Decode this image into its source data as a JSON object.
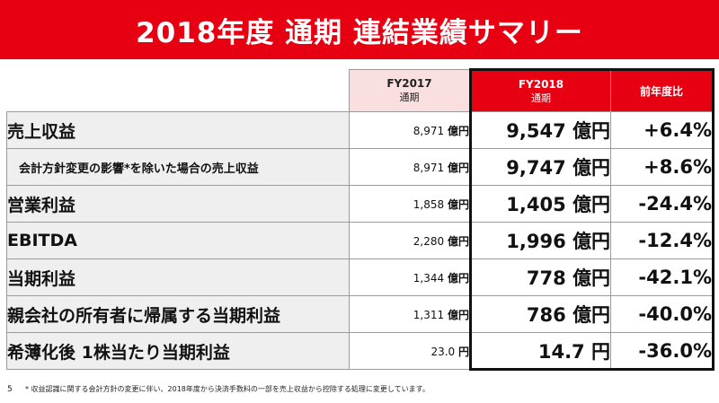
{
  "title": "2018年度 通期 連結業績サマリー",
  "header": {
    "fy2017": {
      "year": "FY2017",
      "period": "通期"
    },
    "fy2018": {
      "year": "FY2018",
      "period": "通期"
    },
    "yoy": "前年度比"
  },
  "rows": [
    {
      "label": "売上収益",
      "fy2017": "8,971",
      "fy2017_unit": "億円",
      "fy2018": "9,547",
      "fy2018_unit": "億円",
      "yoy": "+6.4%"
    },
    {
      "label": "会計方針変更の影響*を除いた場合の売上収益",
      "fy2017": "8,971",
      "fy2017_unit": "億円",
      "fy2018": "9,747",
      "fy2018_unit": "億円",
      "yoy": "+8.6%"
    },
    {
      "label": "営業利益",
      "fy2017": "1,858",
      "fy2017_unit": "億円",
      "fy2018": "1,405",
      "fy2018_unit": "億円",
      "yoy": "-24.4%"
    },
    {
      "label": "EBITDA",
      "fy2017": "2,280",
      "fy2017_unit": "億円",
      "fy2018": "1,996",
      "fy2018_unit": "億円",
      "yoy": "-12.4%"
    },
    {
      "label": "当期利益",
      "fy2017": "1,344",
      "fy2017_unit": "億円",
      "fy2018": "778",
      "fy2018_unit": "億円",
      "yoy": "-42.1%"
    },
    {
      "label": "親会社の所有者に帰属する当期利益",
      "fy2017": "1,311",
      "fy2017_unit": "億円",
      "fy2018": "786",
      "fy2018_unit": "億円",
      "yoy": "-40.0%"
    },
    {
      "label": "希薄化後 1株当たり当期利益",
      "fy2017": "23.0",
      "fy2017_unit": "円",
      "fy2018": "14.7",
      "fy2018_unit": "円",
      "yoy": "-36.0%"
    }
  ],
  "footnote": {
    "page_number": "5",
    "text": "* 収益認識に関する会計方針の変更に伴い、2018年度から決済手数料の一部を売上収益から控除する処理に変更しています。"
  },
  "colors": {
    "accent": "#e60012",
    "fy2017_header": "#f9dfe0",
    "label_bg": "#efefef"
  }
}
